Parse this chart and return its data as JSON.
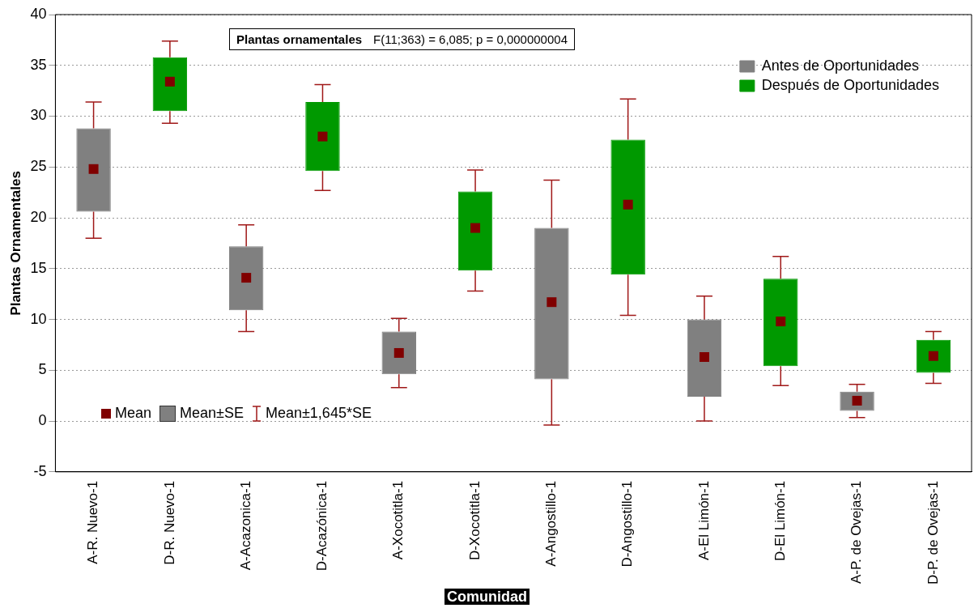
{
  "chart_data": {
    "type": "box",
    "title": "Plantas ornamentales",
    "subtitle": "F(11;363) = 6,085; p = 0,000000004",
    "xlabel": "Comunidad",
    "ylabel": "Plantas Ornamentales",
    "categories": [
      "A-R. Nuevo-1",
      "D-R. Nuevo-1",
      "A-Acazonica-1",
      "D-Acazónica-1",
      "A-Xocotitla-1",
      "D-Xocotitla-1",
      "A-Angostillo-1",
      "D-Angostillo-1",
      "A-El Limón-1",
      "D-El Limón-1",
      "A-P. de Ovejas-1",
      "D-P. de Ovejas-1"
    ],
    "series": [
      {
        "name": "Antes de Oportunidades",
        "color": "#808080",
        "boxes": [
          {
            "low": 18.0,
            "q1": 20.6,
            "q3": 28.8,
            "high": 31.4,
            "mean": 24.8
          },
          null,
          {
            "low": 8.8,
            "q1": 10.9,
            "q3": 17.2,
            "high": 19.3,
            "mean": 14.1
          },
          null,
          {
            "low": 3.3,
            "q1": 4.6,
            "q3": 8.8,
            "high": 10.1,
            "mean": 6.7
          },
          null,
          {
            "low": -0.4,
            "q1": 4.1,
            "q3": 19.0,
            "high": 23.7,
            "mean": 11.7
          },
          null,
          {
            "low": 0.0,
            "q1": 2.4,
            "q3": 10.0,
            "high": 12.3,
            "mean": 6.3
          },
          null,
          {
            "low": 0.35,
            "q1": 1.0,
            "q3": 2.9,
            "high": 3.6,
            "mean": 2.0
          },
          null
        ]
      },
      {
        "name": "Después de Oportunidades",
        "color": "#009900",
        "boxes": [
          null,
          {
            "low": 29.3,
            "q1": 30.5,
            "q3": 35.8,
            "high": 37.4,
            "mean": 33.4
          },
          null,
          {
            "low": 22.7,
            "q1": 24.6,
            "q3": 31.4,
            "high": 33.1,
            "mean": 28.0
          },
          null,
          {
            "low": 12.8,
            "q1": 14.8,
            "q3": 22.6,
            "high": 24.7,
            "mean": 19.0
          },
          null,
          {
            "low": 10.4,
            "q1": 14.4,
            "q3": 27.7,
            "high": 31.7,
            "mean": 21.3
          },
          null,
          {
            "low": 3.5,
            "q1": 5.4,
            "q3": 14.0,
            "high": 16.2,
            "mean": 9.8
          },
          null,
          {
            "low": 3.7,
            "q1": 4.75,
            "q3": 8.0,
            "high": 8.8,
            "mean": 6.4
          }
        ]
      }
    ],
    "ylim": [
      -5,
      40
    ],
    "yticks": [
      -5,
      0,
      5,
      10,
      15,
      20,
      25,
      30,
      35,
      40
    ],
    "grid": "y",
    "legend": "top right",
    "annotations": [
      "Mean",
      "Mean±SE",
      "Mean±1,645*SE"
    ]
  }
}
